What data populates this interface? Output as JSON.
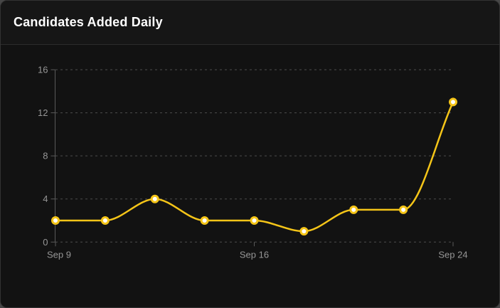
{
  "header": {
    "title": "Candidates Added Daily"
  },
  "chart_data": {
    "type": "line",
    "title": "Candidates Added Daily",
    "values": [
      2,
      2,
      4,
      2,
      2,
      1,
      3,
      3,
      13
    ],
    "x_tick_labels": [
      {
        "index": 0,
        "label": "Sep 9"
      },
      {
        "index": 4,
        "label": "Sep 16"
      },
      {
        "index": 8,
        "label": "Sep 24"
      }
    ],
    "y_ticks": [
      0,
      4,
      8,
      12,
      16
    ],
    "ylim": [
      0,
      16
    ],
    "grid": "dashed-horizontal",
    "legend": "none",
    "colors": {
      "line": "#F5C518",
      "point_fill": "#FFFFFF",
      "grid_line": "#4d4d4d",
      "axis_line": "#5a5a5a",
      "tick_label": "#969696"
    }
  }
}
